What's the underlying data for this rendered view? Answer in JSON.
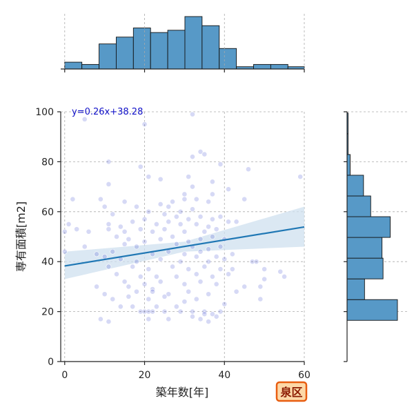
{
  "chart_data": {
    "type": "scatter",
    "subtype": "jointplot-with-regression",
    "xlabel": "築年数[年]",
    "ylabel": "専有面積[m2]",
    "xlim": [
      -1,
      60
    ],
    "ylim": [
      0,
      100
    ],
    "x_ticks": [
      0,
      20,
      40,
      60
    ],
    "y_ticks": [
      0,
      20,
      40,
      60,
      80,
      100
    ],
    "grid": true,
    "regression": {
      "equation_label": "y=0.26x+38.28",
      "slope": 0.26,
      "intercept": 38.28,
      "ci_at": [
        {
          "x": 0,
          "lower": 33,
          "upper": 44
        },
        {
          "x": 30,
          "lower": 44,
          "upper": 48
        },
        {
          "x": 60,
          "lower": 46,
          "upper": 62
        }
      ]
    },
    "points": [
      [
        5,
        97
      ],
      [
        32,
        99
      ],
      [
        20,
        95
      ],
      [
        34,
        84
      ],
      [
        32,
        82
      ],
      [
        35,
        83
      ],
      [
        11,
        80
      ],
      [
        39,
        79
      ],
      [
        19,
        78
      ],
      [
        46,
        77
      ],
      [
        21,
        74
      ],
      [
        24,
        73
      ],
      [
        31,
        74
      ],
      [
        37,
        72
      ],
      [
        59,
        74
      ],
      [
        11,
        71
      ],
      [
        32,
        70
      ],
      [
        30,
        67
      ],
      [
        37,
        67
      ],
      [
        41,
        69
      ],
      [
        2,
        65
      ],
      [
        9,
        65
      ],
      [
        15,
        64
      ],
      [
        27,
        64
      ],
      [
        30,
        65
      ],
      [
        33,
        65
      ],
      [
        36,
        64
      ],
      [
        45,
        65
      ],
      [
        10,
        62
      ],
      [
        18,
        62
      ],
      [
        24,
        63
      ],
      [
        26,
        62
      ],
      [
        29,
        60
      ],
      [
        32,
        61
      ],
      [
        12,
        59
      ],
      [
        21,
        60
      ],
      [
        25,
        59
      ],
      [
        28,
        58
      ],
      [
        31,
        57
      ],
      [
        34,
        58
      ],
      [
        37,
        57
      ],
      [
        39,
        58
      ],
      [
        41,
        56
      ],
      [
        43,
        56
      ],
      [
        1,
        55
      ],
      [
        11,
        55
      ],
      [
        14,
        54
      ],
      [
        17,
        56
      ],
      [
        20,
        57
      ],
      [
        23,
        55
      ],
      [
        26,
        56
      ],
      [
        29,
        55
      ],
      [
        33,
        55
      ],
      [
        36,
        54
      ],
      [
        3,
        53
      ],
      [
        6,
        52
      ],
      [
        11,
        53
      ],
      [
        15,
        52
      ],
      [
        19,
        53
      ],
      [
        22,
        52
      ],
      [
        25,
        53
      ],
      [
        30,
        52
      ],
      [
        35,
        52
      ],
      [
        38,
        53
      ],
      [
        0,
        52
      ],
      [
        13,
        50
      ],
      [
        16,
        49
      ],
      [
        20,
        48
      ],
      [
        24,
        49
      ],
      [
        27,
        50
      ],
      [
        31,
        48
      ],
      [
        34,
        49
      ],
      [
        37,
        50
      ],
      [
        40,
        49
      ],
      [
        5,
        46
      ],
      [
        15,
        47
      ],
      [
        18,
        46
      ],
      [
        28,
        47
      ],
      [
        32,
        46
      ],
      [
        36,
        45
      ],
      [
        39,
        46
      ],
      [
        0,
        44
      ],
      [
        8,
        43
      ],
      [
        12,
        44
      ],
      [
        22,
        43
      ],
      [
        26,
        44
      ],
      [
        30,
        43
      ],
      [
        34,
        44
      ],
      [
        38,
        42
      ],
      [
        42,
        43
      ],
      [
        10,
        42
      ],
      [
        14,
        41
      ],
      [
        18,
        40
      ],
      [
        24,
        41
      ],
      [
        29,
        40
      ],
      [
        33,
        42
      ],
      [
        36,
        40
      ],
      [
        40,
        41
      ],
      [
        47,
        40
      ],
      [
        48,
        40
      ],
      [
        11,
        38
      ],
      [
        17,
        38
      ],
      [
        21,
        37
      ],
      [
        27,
        38
      ],
      [
        31,
        37
      ],
      [
        35,
        38
      ],
      [
        39,
        37
      ],
      [
        42,
        37
      ],
      [
        50,
        37
      ],
      [
        54,
        36
      ],
      [
        13,
        35
      ],
      [
        19,
        34
      ],
      [
        23,
        34
      ],
      [
        28,
        34
      ],
      [
        33,
        35
      ],
      [
        37,
        34
      ],
      [
        41,
        35
      ],
      [
        55,
        34
      ],
      [
        50,
        33
      ],
      [
        15,
        32
      ],
      [
        20,
        31
      ],
      [
        24,
        32
      ],
      [
        30,
        31
      ],
      [
        34,
        32
      ],
      [
        38,
        31
      ],
      [
        16,
        30
      ],
      [
        22,
        29
      ],
      [
        8,
        30
      ],
      [
        45,
        30
      ],
      [
        49,
        30
      ],
      [
        10,
        27
      ],
      [
        18,
        28
      ],
      [
        22,
        28
      ],
      [
        26,
        27
      ],
      [
        31,
        28
      ],
      [
        36,
        27
      ],
      [
        43,
        28
      ],
      [
        12,
        25
      ],
      [
        16,
        26
      ],
      [
        21,
        25
      ],
      [
        25,
        26
      ],
      [
        30,
        24
      ],
      [
        33,
        25
      ],
      [
        40,
        23
      ],
      [
        49,
        25
      ],
      [
        14,
        22
      ],
      [
        17,
        22
      ],
      [
        23,
        22
      ],
      [
        28,
        22
      ],
      [
        19,
        20
      ],
      [
        20,
        20
      ],
      [
        21,
        20
      ],
      [
        22,
        20
      ],
      [
        25,
        20
      ],
      [
        29,
        20
      ],
      [
        32,
        20
      ],
      [
        35,
        20
      ],
      [
        37,
        19
      ],
      [
        39,
        20
      ],
      [
        9,
        17
      ],
      [
        11,
        16
      ],
      [
        21,
        17
      ],
      [
        26,
        17
      ],
      [
        32,
        18
      ],
      [
        34,
        17
      ],
      [
        36,
        16
      ],
      [
        38,
        18
      ],
      [
        35,
        19
      ]
    ],
    "top_histogram": {
      "bin_edges": [
        0,
        4.3,
        8.6,
        12.9,
        17.2,
        21.5,
        25.8,
        30.1,
        34.4,
        38.7,
        43,
        47.3,
        51.6,
        55.9,
        60
      ],
      "counts": [
        3,
        2,
        11,
        14,
        18,
        16,
        17,
        23,
        19,
        9,
        1,
        2,
        2,
        1
      ]
    },
    "right_histogram": {
      "bin_edges": [
        16.5,
        24.8,
        33.1,
        41.4,
        49.7,
        58.0,
        66.3,
        74.6,
        82.9,
        91.2,
        99.5
      ],
      "counts": [
        49,
        17,
        35,
        34,
        42,
        23,
        16,
        3,
        1,
        1
      ]
    }
  },
  "badge": {
    "text": "泉区",
    "fill": "#fdd9a8",
    "border": "#e85d10"
  },
  "colors": {
    "points": "#4650d0",
    "regression_line": "#1f77b4",
    "ci_band": "#cfe0ef",
    "histogram_bars": "#5799c7"
  }
}
